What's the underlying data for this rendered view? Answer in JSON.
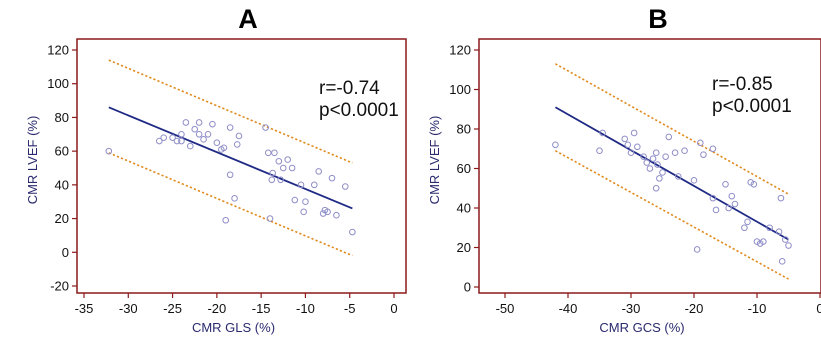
{
  "colors": {
    "frame": "#8b1a1a",
    "regression": "#1f2a85",
    "confidence": "#e08a1e",
    "points": "#8e8ec8",
    "axis_text": "#2a2a6e"
  },
  "chart_data": [
    {
      "type": "scatter",
      "title": "A",
      "stats": {
        "r": "r=-0.74",
        "p": "p<0.0001"
      },
      "xlabel": "CMR GLS (%)",
      "ylabel": "CMR LVEF (%)",
      "xlim": [
        -35,
        0
      ],
      "ylim": [
        -20,
        120
      ],
      "xticks": [
        -35,
        -30,
        -25,
        -20,
        -15,
        -10,
        -5,
        0
      ],
      "xtick_labels": [
        "-35",
        "-30",
        "-25",
        "-20",
        "-15",
        "-10",
        "-5",
        "0"
      ],
      "yticks": [
        -20,
        0,
        20,
        40,
        60,
        80,
        100,
        120
      ],
      "ytick_labels": [
        "-20",
        "0",
        "20",
        "40",
        "60",
        "80",
        "100",
        "120"
      ],
      "grid": false,
      "regression": {
        "x": [
          -32.2,
          -4.7
        ],
        "y": [
          86,
          26
        ]
      },
      "upper_ci": {
        "x": [
          -32.2,
          -4.7
        ],
        "y": [
          114,
          53
        ]
      },
      "lower_ci": {
        "x": [
          -32.2,
          -4.7
        ],
        "y": [
          59,
          -2
        ]
      },
      "points": [
        [
          -32.2,
          60
        ],
        [
          -26.5,
          66
        ],
        [
          -26,
          68
        ],
        [
          -25,
          68
        ],
        [
          -24.5,
          66
        ],
        [
          -24,
          66
        ],
        [
          -24,
          70
        ],
        [
          -23.5,
          77
        ],
        [
          -23,
          63
        ],
        [
          -22.5,
          73
        ],
        [
          -22,
          70
        ],
        [
          -22,
          77
        ],
        [
          -21.5,
          67
        ],
        [
          -21,
          70
        ],
        [
          -20.5,
          76
        ],
        [
          -20,
          65
        ],
        [
          -19.5,
          61
        ],
        [
          -19.2,
          62
        ],
        [
          -19,
          19
        ],
        [
          -18.5,
          46
        ],
        [
          -18.5,
          74
        ],
        [
          -18,
          32
        ],
        [
          -17.7,
          64
        ],
        [
          -17.5,
          69
        ],
        [
          -14.5,
          74
        ],
        [
          -14.2,
          59
        ],
        [
          -14,
          20
        ],
        [
          -13.8,
          43
        ],
        [
          -13.7,
          47
        ],
        [
          -13.5,
          59
        ],
        [
          -13,
          54
        ],
        [
          -12.8,
          43
        ],
        [
          -12.5,
          50
        ],
        [
          -12,
          55
        ],
        [
          -11.5,
          50
        ],
        [
          -11.2,
          31
        ],
        [
          -10.5,
          40
        ],
        [
          -10.2,
          24
        ],
        [
          -10,
          30
        ],
        [
          -9,
          40
        ],
        [
          -8.5,
          48
        ],
        [
          -8,
          23
        ],
        [
          -7.8,
          25
        ],
        [
          -7.5,
          24
        ],
        [
          -7,
          44
        ],
        [
          -6.5,
          22
        ],
        [
          -5.5,
          39
        ],
        [
          -4.7,
          12
        ]
      ]
    },
    {
      "type": "scatter",
      "title": "B",
      "stats": {
        "r": "r=-0.85",
        "p": "p<0.0001"
      },
      "xlabel": "CMR GCS (%)",
      "ylabel": "CMR LVEF (%)",
      "xlim": [
        -50,
        0
      ],
      "ylim": [
        0,
        120
      ],
      "xticks": [
        -50,
        -40,
        -30,
        -20,
        -10,
        0
      ],
      "xtick_labels": [
        "-50",
        "-40",
        "-30",
        "-20",
        "-10",
        "0"
      ],
      "yticks": [
        0,
        20,
        40,
        60,
        80,
        100,
        120
      ],
      "ytick_labels": [
        "0",
        "20",
        "40",
        "60",
        "80",
        "100",
        "120"
      ],
      "grid": false,
      "regression": {
        "x": [
          -42,
          -5
        ],
        "y": [
          91,
          24
        ]
      },
      "upper_ci": {
        "x": [
          -42,
          -5
        ],
        "y": [
          113,
          47
        ]
      },
      "lower_ci": {
        "x": [
          -42,
          -5
        ],
        "y": [
          69,
          4
        ]
      },
      "points": [
        [
          -42,
          72
        ],
        [
          -35,
          69
        ],
        [
          -34.5,
          78
        ],
        [
          -31,
          75
        ],
        [
          -30.5,
          72
        ],
        [
          -30,
          68
        ],
        [
          -29.5,
          78
        ],
        [
          -29,
          71
        ],
        [
          -28,
          66
        ],
        [
          -27.5,
          63
        ],
        [
          -27,
          60
        ],
        [
          -26.5,
          65
        ],
        [
          -26,
          68
        ],
        [
          -26,
          50
        ],
        [
          -25.8,
          62
        ],
        [
          -25.5,
          55
        ],
        [
          -25,
          58
        ],
        [
          -24.5,
          66
        ],
        [
          -24,
          76
        ],
        [
          -23,
          68
        ],
        [
          -22.5,
          56
        ],
        [
          -21.5,
          69
        ],
        [
          -20,
          54
        ],
        [
          -19.5,
          19
        ],
        [
          -19,
          73
        ],
        [
          -18.5,
          67
        ],
        [
          -17,
          70
        ],
        [
          -17,
          45
        ],
        [
          -16.5,
          39
        ],
        [
          -15,
          52
        ],
        [
          -14.5,
          40
        ],
        [
          -14,
          46
        ],
        [
          -13.5,
          42
        ],
        [
          -12,
          30
        ],
        [
          -11.5,
          33
        ],
        [
          -11,
          53
        ],
        [
          -10.5,
          52
        ],
        [
          -10,
          23
        ],
        [
          -9.5,
          22
        ],
        [
          -9,
          23
        ],
        [
          -8,
          30
        ],
        [
          -6.5,
          28
        ],
        [
          -6.2,
          45
        ],
        [
          -6,
          13
        ],
        [
          -5.5,
          24
        ],
        [
          -5,
          21
        ]
      ]
    }
  ]
}
